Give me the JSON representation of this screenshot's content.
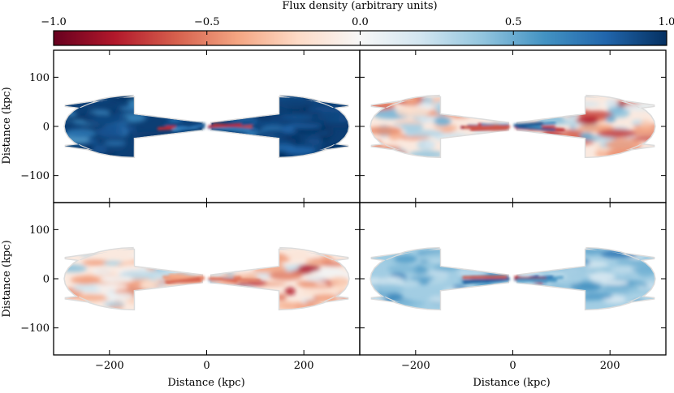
{
  "chart_data": {
    "type": "heatmap",
    "colorbar": {
      "label": "Flux density (arbitrary units)",
      "range": [
        -1.0,
        1.0
      ],
      "ticks": [
        -1.0,
        -0.5,
        0.0,
        0.5,
        1.0
      ],
      "tick_labels": [
        "−1.0",
        "−0.5",
        "0.0",
        "0.5",
        "1.0"
      ],
      "colors": [
        "#67001f",
        "#b2182b",
        "#d6604d",
        "#f4a582",
        "#fddbc7",
        "#f7f7f7",
        "#d1e5f0",
        "#92c5de",
        "#4393c3",
        "#2166ac",
        "#053061"
      ],
      "position": "top"
    },
    "xlabel": "Distance (kpc)",
    "ylabel": "Distance (kpc)",
    "xlim": [
      -315,
      315
    ],
    "ylim": [
      -155,
      155
    ],
    "x_ticks": [
      -200,
      0,
      200
    ],
    "x_tick_labels": [
      "−200",
      "0",
      "200"
    ],
    "y_ticks": [
      -100,
      0,
      100
    ],
    "y_tick_labels": [
      "−100",
      "0",
      "100"
    ],
    "panels": [
      {
        "id": "top-left",
        "dominant_sign": "positive",
        "mean_flux": 0.95,
        "description": "strongly positive flux throughout both lobes"
      },
      {
        "id": "top-right",
        "dominant_sign": "mixed",
        "mean_flux": -0.1,
        "description": "mixed positive and negative structure; negative concentration in right lobe"
      },
      {
        "id": "bottom-left",
        "dominant_sign": "mixed",
        "mean_flux": -0.1,
        "description": "weak mixed structure; negative concentration in right lobe"
      },
      {
        "id": "bottom-right",
        "dominant_sign": "positive",
        "mean_flux": 0.35,
        "description": "moderate positive flux throughout both lobes"
      }
    ]
  }
}
